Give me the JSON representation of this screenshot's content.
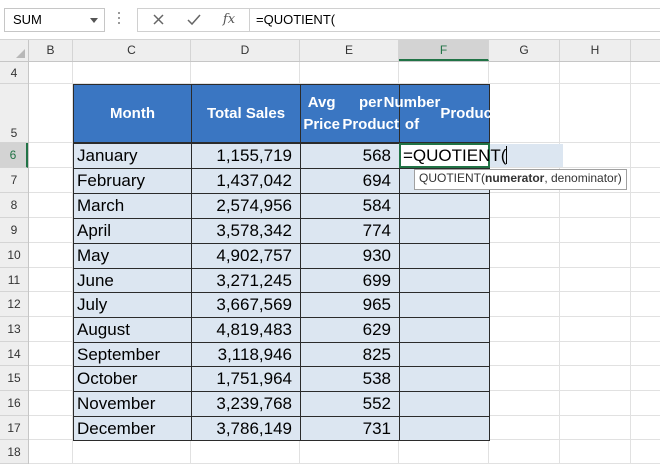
{
  "name_box": {
    "value": "SUM"
  },
  "formula_bar": {
    "fx_label": "fx",
    "formula": "=QUOTIENT("
  },
  "columns": [
    "B",
    "C",
    "D",
    "E",
    "F",
    "G",
    "H"
  ],
  "rows": [
    "4",
    "5",
    "6",
    "7",
    "8",
    "9",
    "10",
    "11",
    "12",
    "13",
    "14",
    "15",
    "16",
    "17",
    "18"
  ],
  "selected_column": "F",
  "selected_row": "6",
  "table": {
    "headers": {
      "month": "Month",
      "total_sales": "Total Sales",
      "avg_price_line1": "Avg Price",
      "avg_price_line2": "per Product",
      "num_products_line1": "Number of",
      "num_products_line2": "Products"
    },
    "rows": [
      {
        "month": "January",
        "total_sales": "1,155,719",
        "avg_price": "568"
      },
      {
        "month": "February",
        "total_sales": "1,437,042",
        "avg_price": "694"
      },
      {
        "month": "March",
        "total_sales": "2,574,956",
        "avg_price": "584"
      },
      {
        "month": "April",
        "total_sales": "3,578,342",
        "avg_price": "774"
      },
      {
        "month": "May",
        "total_sales": "4,902,757",
        "avg_price": "930"
      },
      {
        "month": "June",
        "total_sales": "3,271,245",
        "avg_price": "699"
      },
      {
        "month": "July",
        "total_sales": "3,667,569",
        "avg_price": "965"
      },
      {
        "month": "August",
        "total_sales": "4,819,483",
        "avg_price": "629"
      },
      {
        "month": "September",
        "total_sales": "3,118,946",
        "avg_price": "825"
      },
      {
        "month": "October",
        "total_sales": "1,751,964",
        "avg_price": "538"
      },
      {
        "month": "November",
        "total_sales": "3,239,768",
        "avg_price": "552"
      },
      {
        "month": "December",
        "total_sales": "3,786,149",
        "avg_price": "731"
      }
    ]
  },
  "active_cell": {
    "content": "=QUOTIENT("
  },
  "tooltip": {
    "func": "QUOTIENT(",
    "arg1": "numerator",
    "rest": ", denominator)"
  },
  "colors": {
    "header_fill": "#3a76c2",
    "cell_fill": "#dce6f1",
    "excel_green": "#217346"
  }
}
